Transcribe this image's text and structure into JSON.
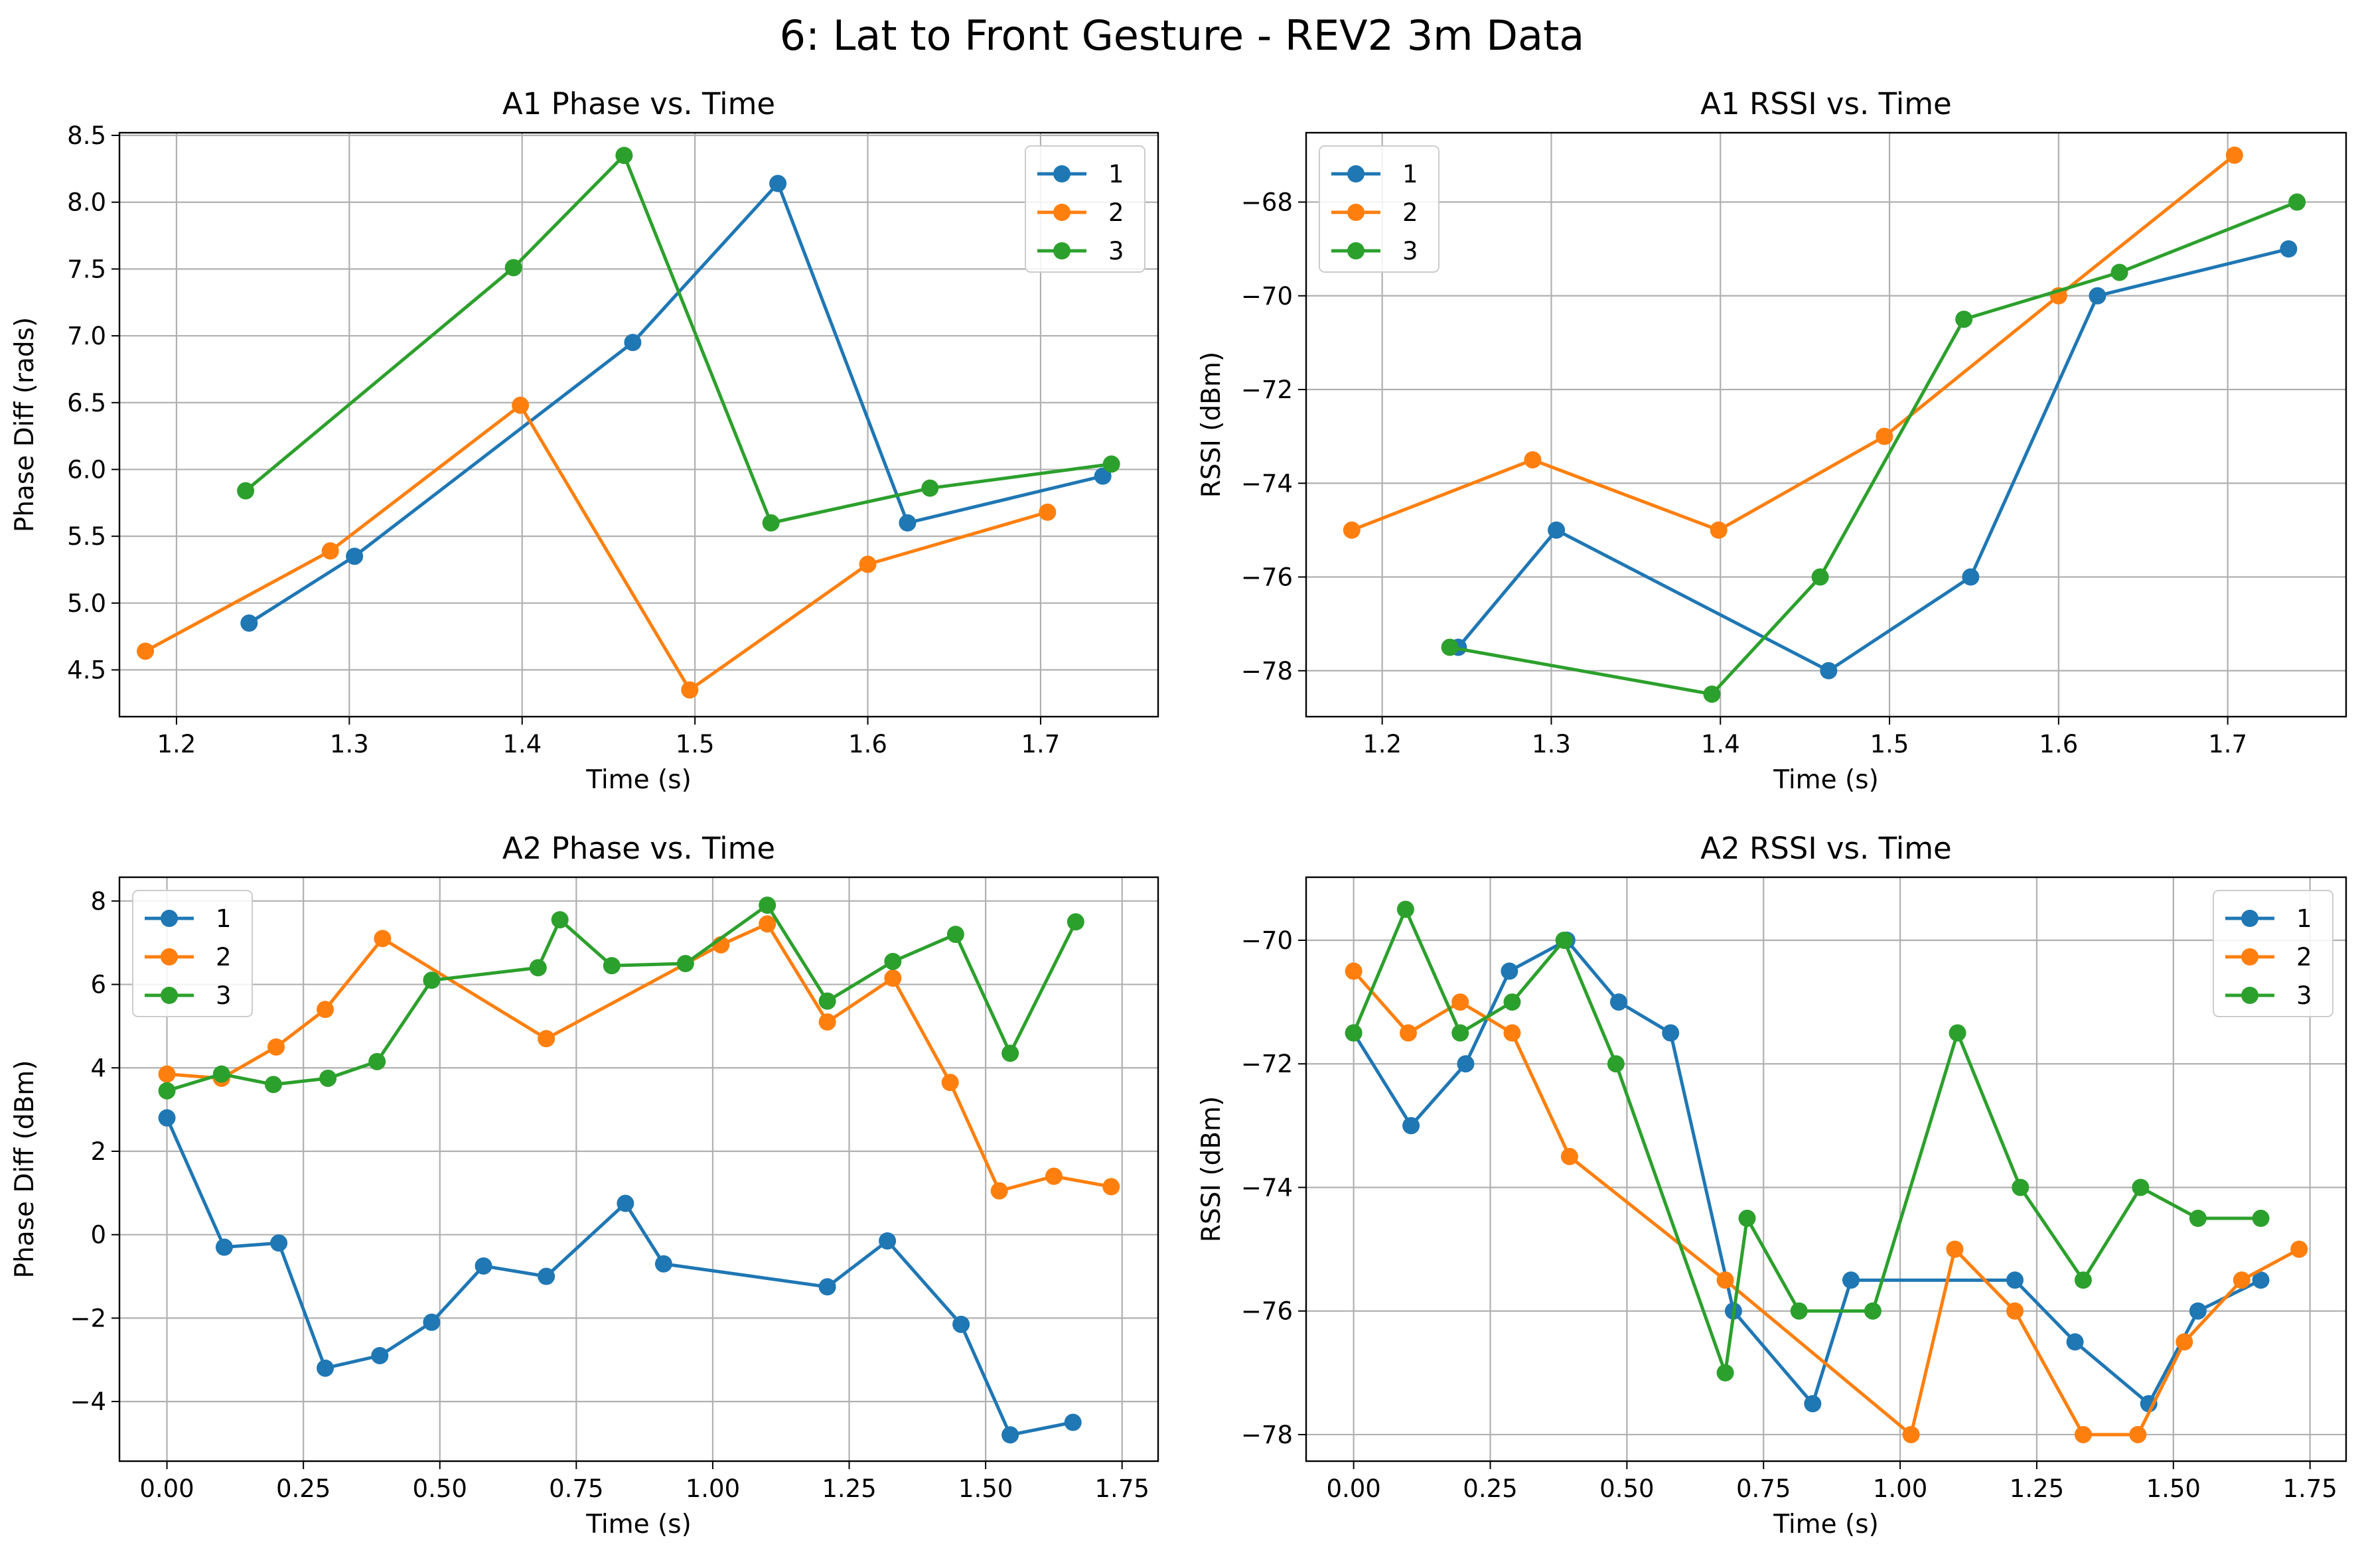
{
  "figure": {
    "suptitle": "6: Lat to Front Gesture - REV2 3m Data"
  },
  "colors": {
    "1": "#1f77b4",
    "2": "#ff7f0e",
    "3": "#2ca02c",
    "grid": "#b0b0b0"
  },
  "chart_data": [
    {
      "type": "line",
      "title": "A1 Phase vs. Time",
      "xlabel": "Time (s)",
      "ylabel": "Phase Diff (rads)",
      "xlim": [
        1.167,
        1.768
      ],
      "ylim": [
        4.15,
        8.52
      ],
      "xticks": [
        1.2,
        1.3,
        1.4,
        1.5,
        1.6,
        1.7
      ],
      "xtick_labels": [
        "1.2",
        "1.3",
        "1.4",
        "1.5",
        "1.6",
        "1.7"
      ],
      "yticks": [
        4.5,
        5.0,
        5.5,
        6.0,
        6.5,
        7.0,
        7.5,
        8.0,
        8.5
      ],
      "ytick_labels": [
        "4.5",
        "5.0",
        "5.5",
        "6.0",
        "6.5",
        "7.0",
        "7.5",
        "8.0",
        "8.5"
      ],
      "grid": true,
      "legend": "top-right",
      "series": [
        {
          "name": "1",
          "x": [
            1.242,
            1.303,
            1.464,
            1.548,
            1.623,
            1.736
          ],
          "y": [
            4.85,
            5.35,
            6.95,
            8.14,
            5.6,
            5.95
          ]
        },
        {
          "name": "2",
          "x": [
            1.182,
            1.289,
            1.399,
            1.497,
            1.6,
            1.704
          ],
          "y": [
            4.64,
            5.39,
            6.48,
            4.35,
            5.29,
            5.68
          ]
        },
        {
          "name": "3",
          "x": [
            1.24,
            1.395,
            1.459,
            1.544,
            1.636,
            1.741
          ],
          "y": [
            5.84,
            7.51,
            8.35,
            5.6,
            5.86,
            6.04
          ]
        }
      ]
    },
    {
      "type": "line",
      "title": "A1 RSSI vs. Time",
      "xlabel": "Time (s)",
      "ylabel": "RSSI (dBm)",
      "xlim": [
        1.155,
        1.77
      ],
      "ylim": [
        -78.98,
        -66.52
      ],
      "xticks": [
        1.2,
        1.3,
        1.4,
        1.5,
        1.6,
        1.7
      ],
      "xtick_labels": [
        "1.2",
        "1.3",
        "1.4",
        "1.5",
        "1.6",
        "1.7"
      ],
      "yticks": [
        -78,
        -76,
        -74,
        -72,
        -70,
        -68
      ],
      "ytick_labels": [
        "−78",
        "−76",
        "−74",
        "−72",
        "−70",
        "−68"
      ],
      "grid": true,
      "legend": "top-left",
      "series": [
        {
          "name": "1",
          "x": [
            1.245,
            1.303,
            1.464,
            1.548,
            1.623,
            1.736
          ],
          "y": [
            -77.5,
            -75,
            -78,
            -76,
            -70,
            -69
          ]
        },
        {
          "name": "2",
          "x": [
            1.182,
            1.289,
            1.399,
            1.497,
            1.6,
            1.704
          ],
          "y": [
            -75,
            -73.5,
            -75,
            -73,
            -70,
            -67
          ]
        },
        {
          "name": "3",
          "x": [
            1.24,
            1.395,
            1.459,
            1.544,
            1.636,
            1.741
          ],
          "y": [
            -77.5,
            -78.5,
            -76,
            -70.5,
            -69.5,
            -68
          ]
        }
      ]
    },
    {
      "type": "line",
      "title": "A2 Phase vs. Time",
      "xlabel": "Time (s)",
      "ylabel": "Phase Diff (dBm)",
      "xlim": [
        -0.087,
        1.816
      ],
      "ylim": [
        -5.43,
        8.57
      ],
      "xticks": [
        0.0,
        0.25,
        0.5,
        0.75,
        1.0,
        1.25,
        1.5,
        1.75
      ],
      "xtick_labels": [
        "0.00",
        "0.25",
        "0.50",
        "0.75",
        "1.00",
        "1.25",
        "1.50",
        "1.75"
      ],
      "yticks": [
        -4,
        -2,
        0,
        2,
        4,
        6,
        8
      ],
      "ytick_labels": [
        "−4",
        "−2",
        "0",
        "2",
        "4",
        "6",
        "8"
      ],
      "grid": true,
      "legend": "top-left",
      "series": [
        {
          "name": "1",
          "x": [
            0.0,
            0.105,
            0.205,
            0.29,
            0.39,
            0.485,
            0.58,
            0.695,
            0.84,
            0.91,
            1.21,
            1.32,
            1.455,
            1.545,
            1.66
          ],
          "y": [
            2.8,
            -0.3,
            -0.2,
            -3.2,
            -2.9,
            -2.1,
            -0.75,
            -1.0,
            0.75,
            -0.7,
            -1.25,
            -0.15,
            -2.15,
            -4.8,
            -4.5
          ]
        },
        {
          "name": "2",
          "x": [
            0.0,
            0.1,
            0.2,
            0.29,
            0.395,
            0.695,
            1.015,
            1.1,
            1.21,
            1.33,
            1.435,
            1.525,
            1.625,
            1.73
          ],
          "y": [
            3.85,
            3.75,
            4.5,
            5.4,
            7.1,
            4.7,
            6.95,
            7.45,
            5.1,
            6.15,
            3.65,
            1.05,
            1.4,
            1.15
          ]
        },
        {
          "name": "3",
          "x": [
            0.0,
            0.1,
            0.195,
            0.295,
            0.385,
            0.485,
            0.68,
            0.72,
            0.815,
            0.95,
            1.1,
            1.21,
            1.33,
            1.445,
            1.545,
            1.665
          ],
          "y": [
            3.45,
            3.85,
            3.6,
            3.75,
            4.15,
            6.1,
            6.4,
            7.55,
            6.45,
            6.5,
            7.9,
            5.6,
            6.55,
            7.2,
            4.35,
            7.5
          ]
        }
      ]
    },
    {
      "type": "line",
      "title": "A2 RSSI vs. Time",
      "xlabel": "Time (s)",
      "ylabel": "RSSI (dBm)",
      "xlim": [
        -0.087,
        1.816
      ],
      "ylim": [
        -78.43,
        -68.98
      ],
      "xticks": [
        0.0,
        0.25,
        0.5,
        0.75,
        1.0,
        1.25,
        1.5,
        1.75
      ],
      "xtick_labels": [
        "0.00",
        "0.25",
        "0.50",
        "0.75",
        "1.00",
        "1.25",
        "1.50",
        "1.75"
      ],
      "yticks": [
        -78,
        -76,
        -74,
        -72,
        -70
      ],
      "ytick_labels": [
        "−78",
        "−76",
        "−74",
        "−72",
        "−70"
      ],
      "grid": true,
      "legend": "top-right",
      "series": [
        {
          "name": "1",
          "x": [
            0.0,
            0.105,
            0.205,
            0.285,
            0.39,
            0.485,
            0.58,
            0.695,
            0.84,
            0.91,
            1.21,
            1.32,
            1.455,
            1.545,
            1.66
          ],
          "y": [
            -71.5,
            -73,
            -72,
            -70.5,
            -70,
            -71,
            -71.5,
            -76,
            -77.5,
            -75.5,
            -75.5,
            -76.5,
            -77.5,
            -76,
            -75.5
          ]
        },
        {
          "name": "2",
          "x": [
            0.0,
            0.1,
            0.195,
            0.29,
            0.395,
            0.68,
            1.02,
            1.1,
            1.21,
            1.335,
            1.435,
            1.52,
            1.625,
            1.73
          ],
          "y": [
            -70.5,
            -71.5,
            -71,
            -71.5,
            -73.5,
            -75.5,
            -78,
            -75,
            -76,
            -78,
            -78,
            -76.5,
            -75.5,
            -75
          ]
        },
        {
          "name": "3",
          "x": [
            0.0,
            0.095,
            0.195,
            0.29,
            0.385,
            0.48,
            0.68,
            0.72,
            0.815,
            0.95,
            1.105,
            1.22,
            1.335,
            1.44,
            1.545,
            1.66
          ],
          "y": [
            -71.5,
            -69.5,
            -71.5,
            -71,
            -70,
            -72,
            -77,
            -74.5,
            -76,
            -76,
            -71.5,
            -74,
            -75.5,
            -74,
            -74.5,
            -74.5
          ]
        }
      ]
    }
  ]
}
